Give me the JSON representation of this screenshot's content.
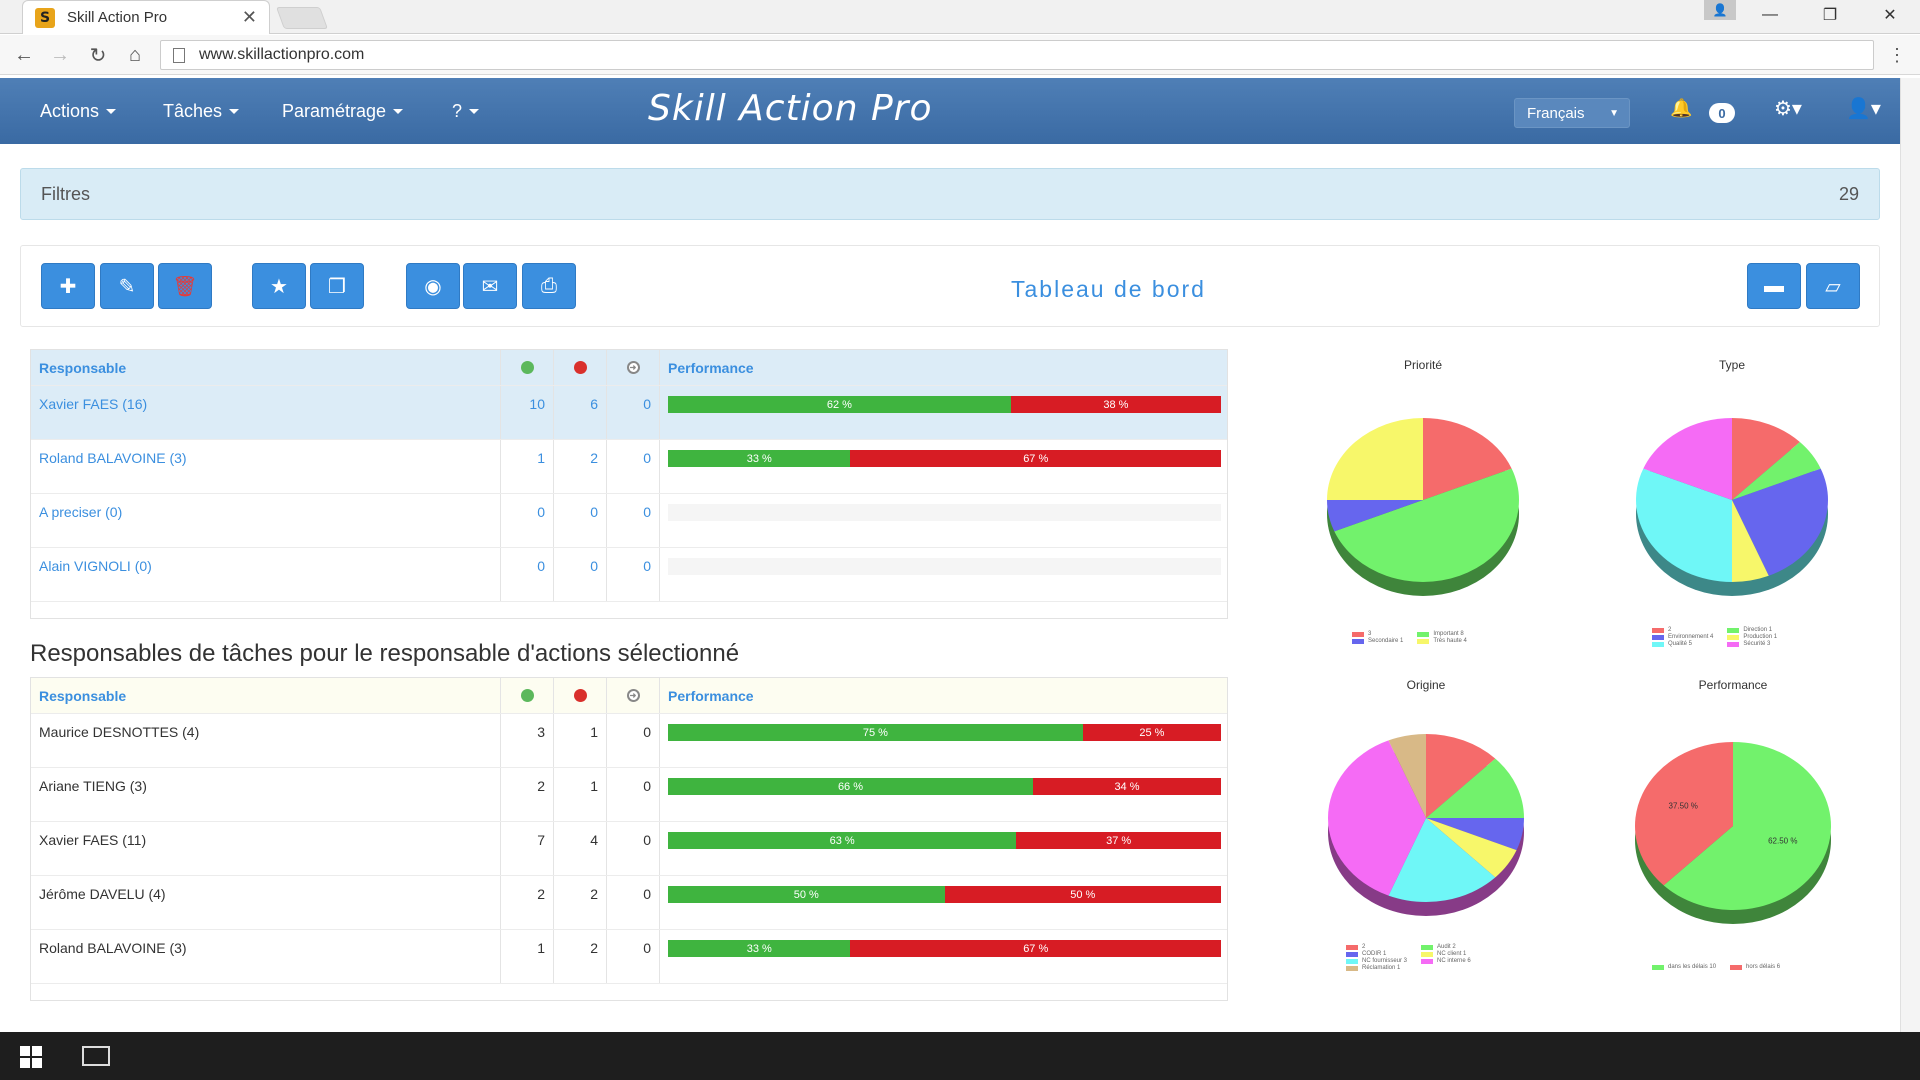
{
  "browser": {
    "tab_title": "Skill Action Pro",
    "tab_logo": "S",
    "url": "www.skillactionpro.com",
    "icons": [
      "back-icon",
      "forward-icon",
      "reload-icon",
      "home-icon",
      "page-icon",
      "menu-icon"
    ]
  },
  "app": {
    "brand": "Skill Action Pro",
    "menu": [
      {
        "label": "Actions"
      },
      {
        "label": "Tâches"
      },
      {
        "label": "Paramétrage"
      },
      {
        "label": "?"
      }
    ],
    "language": "Français",
    "notifications": "0"
  },
  "filters": {
    "label": "Filtres",
    "count": "29"
  },
  "toolbar": {
    "title": "Tableau de bord"
  },
  "table1": {
    "headers": {
      "name": "Responsable",
      "perf": "Performance"
    },
    "rows": [
      {
        "name": "Xavier FAES (16)",
        "a": "10",
        "b": "6",
        "c": "0",
        "green": 62,
        "red": 38,
        "green_label": "62 %",
        "red_label": "38 %"
      },
      {
        "name": "Roland BALAVOINE (3)",
        "a": "1",
        "b": "2",
        "c": "0",
        "green": 33,
        "red": 67,
        "green_label": "33 %",
        "red_label": "67 %"
      },
      {
        "name": "A preciser (0)",
        "a": "0",
        "b": "0",
        "c": "0",
        "green": 0,
        "red": 0,
        "green_label": "",
        "red_label": ""
      },
      {
        "name": "Alain VIGNOLI (0)",
        "a": "0",
        "b": "0",
        "c": "0",
        "green": 0,
        "red": 0,
        "green_label": "",
        "red_label": ""
      }
    ]
  },
  "section_title": "Responsables de tâches pour le responsable d'actions sélectionné",
  "table2": {
    "headers": {
      "name": "Responsable",
      "perf": "Performance"
    },
    "rows": [
      {
        "name": "Maurice DESNOTTES (4)",
        "a": "3",
        "b": "1",
        "c": "0",
        "green": 75,
        "red": 25,
        "green_label": "75 %",
        "red_label": "25 %"
      },
      {
        "name": "Ariane TIENG (3)",
        "a": "2",
        "b": "1",
        "c": "0",
        "green": 66,
        "red": 34,
        "green_label": "66 %",
        "red_label": "34 %"
      },
      {
        "name": "Xavier FAES (11)",
        "a": "7",
        "b": "4",
        "c": "0",
        "green": 63,
        "red": 37,
        "green_label": "63 %",
        "red_label": "37 %"
      },
      {
        "name": "Jérôme DAVELU (4)",
        "a": "2",
        "b": "2",
        "c": "0",
        "green": 50,
        "red": 50,
        "green_label": "50 %",
        "red_label": "50 %"
      },
      {
        "name": "Roland BALAVOINE (3)",
        "a": "1",
        "b": "2",
        "c": "0",
        "green": 33,
        "red": 67,
        "green_label": "33 %",
        "red_label": "67 %"
      }
    ]
  },
  "chart_data": [
    {
      "type": "pie",
      "title": "Priorité",
      "slices": [
        {
          "label": "3",
          "value": 3,
          "color": "#f56b6b"
        },
        {
          "label": "Important 8",
          "value": 8,
          "color": "#72f26c"
        },
        {
          "label": "Secondaire 1",
          "value": 1,
          "color": "#6666ee"
        },
        {
          "label": "Très haute 4",
          "value": 4,
          "color": "#f7f76a"
        }
      ]
    },
    {
      "type": "pie",
      "title": "Type",
      "slices": [
        {
          "label": "2",
          "value": 2,
          "color": "#f56b6b"
        },
        {
          "label": "Direction 1",
          "value": 1,
          "color": "#72f26c"
        },
        {
          "label": "Environnement 4",
          "value": 4,
          "color": "#6666ee"
        },
        {
          "label": "Production 1",
          "value": 1,
          "color": "#f7f76a"
        },
        {
          "label": "Qualité 5",
          "value": 5,
          "color": "#6ff7f7"
        },
        {
          "label": "Sécurité 3",
          "value": 3,
          "color": "#f56bf5"
        }
      ]
    },
    {
      "type": "pie",
      "title": "Origine",
      "slices": [
        {
          "label": "2",
          "value": 2,
          "color": "#f56b6b"
        },
        {
          "label": "Audit 2",
          "value": 2,
          "color": "#72f26c"
        },
        {
          "label": "CODIR 1",
          "value": 1,
          "color": "#6666ee"
        },
        {
          "label": "NC client 1",
          "value": 1,
          "color": "#f7f76a"
        },
        {
          "label": "NC fournisseur 3",
          "value": 3,
          "color": "#6ff7f7"
        },
        {
          "label": "NC interne 6",
          "value": 6,
          "color": "#f56bf5"
        },
        {
          "label": "Réclamation 1",
          "value": 1,
          "color": "#d8b987"
        }
      ]
    },
    {
      "type": "pie",
      "title": "Performance",
      "slices": [
        {
          "label": "dans les délais 10",
          "value": 10,
          "color": "#72f26c",
          "inner_label": "62.50 %"
        },
        {
          "label": "hors délais 6",
          "value": 6,
          "color": "#f56b6b",
          "inner_label": "37.50 %"
        }
      ]
    }
  ]
}
